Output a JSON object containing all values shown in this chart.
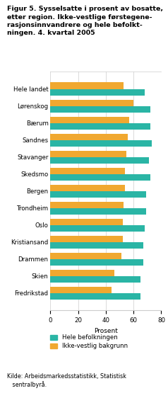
{
  "title": "Figur 5. Sysselsatte i prosent av bosatte,\netter region. Ikke-vestlige førstegene-\nrasjonsinnvandrere og hele befolkt-\nningen. 4. kvartal 2005",
  "categories": [
    "Hele landet",
    "Lørenskog",
    "Bærum",
    "Sandnes",
    "Stavanger",
    "Skedsmo",
    "Bergen",
    "Trondheim",
    "Oslo",
    "Kristiansand",
    "Drammen",
    "Skien",
    "Fredrikstad"
  ],
  "hele_befolkningen": [
    68,
    72,
    72,
    73,
    71,
    72,
    69,
    69,
    68,
    67,
    67,
    65,
    65
  ],
  "ikke_vestlig": [
    53,
    60,
    57,
    56,
    55,
    54,
    54,
    53,
    52,
    52,
    51,
    46,
    44
  ],
  "color_hele": "#2ab5a5",
  "color_ikke": "#f0a830",
  "xlabel": "Prosent",
  "xlim": [
    0,
    80
  ],
  "xticks": [
    0,
    20,
    40,
    60,
    80
  ],
  "legend_hele": "Hele befolkningen",
  "legend_ikke": "Ikke-vestlig bakgrunn",
  "source": "Kilde: Arbeidsmarkedsstatistikk, Statistisk\n   sentralbyrå.",
  "bg_color": "#ffffff",
  "grid_color": "#cccccc"
}
